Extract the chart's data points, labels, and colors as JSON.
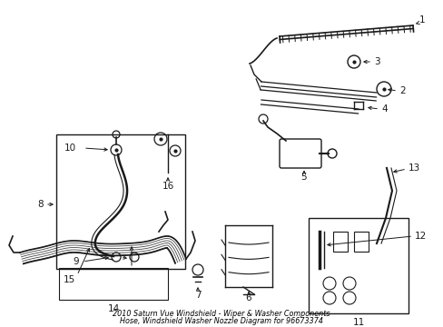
{
  "title_line1": "2010 Saturn Vue Windshield - Wiper & Washer Components",
  "title_line2": "Hose, Windshield Washer Nozzle Diagram for 96673374",
  "background_color": "#ffffff",
  "line_color": "#1a1a1a",
  "label_color": "#000000",
  "fig_width": 4.89,
  "fig_height": 3.6,
  "dpi": 100
}
